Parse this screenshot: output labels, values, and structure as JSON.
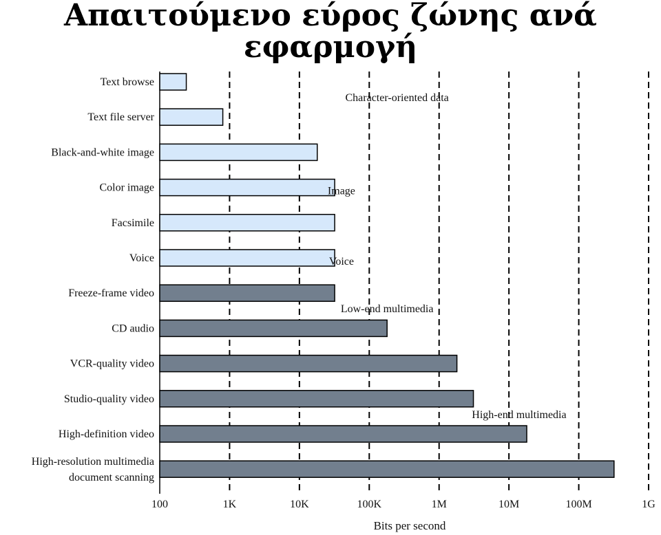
{
  "title": "Απαιτούμενο εύρος ζώνης ανά εφαρμογή",
  "chart_data": {
    "type": "bar",
    "orientation": "horizontal",
    "title": "Απαιτούμενο εύρος ζώνης ανά εφαρμογή",
    "xlabel": "Bits per second",
    "ylabel": "",
    "xscale": "log",
    "xlim": [
      100,
      1000000000
    ],
    "xticks": [
      100,
      1000,
      10000,
      100000,
      1000000,
      10000000,
      100000000,
      1000000000
    ],
    "xtick_labels": [
      "100",
      "1K",
      "10K",
      "100K",
      "1M",
      "10M",
      "100M",
      "1G"
    ],
    "grid": "vertical dashed",
    "categories": [
      [
        "Text browse"
      ],
      [
        "Text file server"
      ],
      [
        "Black-and-white image"
      ],
      [
        "Color image"
      ],
      [
        "Facsimile"
      ],
      [
        "Voice"
      ],
      [
        "Freeze-frame video"
      ],
      [
        "CD audio"
      ],
      [
        "VCR-quality video"
      ],
      [
        "Studio-quality video"
      ],
      [
        "High-definition video"
      ],
      [
        "High-resolution multimedia",
        "document scanning"
      ]
    ],
    "values": [
      240,
      800,
      18000,
      32000,
      32000,
      32000,
      32000,
      180000,
      1800000,
      3100000,
      18000000,
      320000000
    ],
    "colors": {
      "light": "#d6e8fb",
      "dark": "#727f8e",
      "outline": "#000000"
    },
    "bar_fill": [
      "light",
      "light",
      "light",
      "light",
      "light",
      "light",
      "dark",
      "dark",
      "dark",
      "dark",
      "dark",
      "dark"
    ],
    "annotations": [
      {
        "text": "Character-oriented data",
        "x": 250000,
        "row": 0.45
      },
      {
        "text": "Image",
        "x": 40000,
        "row": 3.1
      },
      {
        "text": "Voice",
        "x": 40000,
        "row": 5.1
      },
      {
        "text": "Low-end multimedia",
        "x": 180000,
        "row": 6.45
      },
      {
        "text": "High-end multimedia",
        "x": 14000000,
        "row": 9.45
      }
    ]
  }
}
